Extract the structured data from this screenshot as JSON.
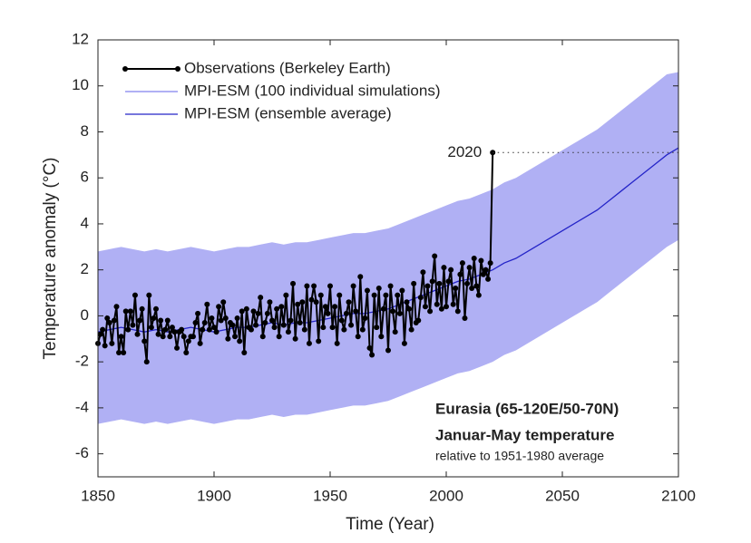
{
  "chart_data": {
    "type": "line",
    "xlabel": "Time (Year)",
    "ylabel": "Temperature anomaly (°C)",
    "xlim": [
      1850,
      2100
    ],
    "xticks": [
      1850,
      1900,
      1950,
      2000,
      2050,
      2100
    ],
    "ylim": [
      -7,
      12
    ],
    "yticks": [
      -6,
      -4,
      -2,
      0,
      2,
      4,
      6,
      8,
      10,
      12
    ],
    "grid": false,
    "legend": "upper left",
    "annotations": [
      "2020",
      "Eurasia (65-120E/50-70N)",
      "Januar-May temperature",
      "relative to 1951-1980 average"
    ],
    "band": {
      "name": "MPI-ESM (100 individual simulations)",
      "color": "#b0b0f4",
      "x": [
        1850,
        1855,
        1860,
        1865,
        1870,
        1875,
        1880,
        1885,
        1890,
        1895,
        1900,
        1905,
        1910,
        1915,
        1920,
        1925,
        1930,
        1935,
        1940,
        1945,
        1950,
        1955,
        1960,
        1965,
        1970,
        1975,
        1980,
        1985,
        1990,
        1995,
        2000,
        2005,
        2010,
        2015,
        2020,
        2025,
        2030,
        2035,
        2040,
        2045,
        2050,
        2055,
        2060,
        2065,
        2070,
        2075,
        2080,
        2085,
        2090,
        2095,
        2100
      ],
      "upper": [
        2.8,
        2.9,
        3.0,
        2.9,
        2.8,
        2.9,
        2.8,
        2.9,
        3.0,
        2.9,
        2.8,
        2.9,
        3.0,
        3.0,
        3.1,
        3.2,
        3.1,
        3.2,
        3.2,
        3.3,
        3.4,
        3.5,
        3.6,
        3.6,
        3.7,
        3.8,
        4.0,
        4.2,
        4.4,
        4.6,
        4.8,
        5.0,
        5.1,
        5.3,
        5.5,
        5.8,
        6.0,
        6.3,
        6.6,
        6.9,
        7.2,
        7.5,
        7.8,
        8.1,
        8.5,
        8.9,
        9.3,
        9.7,
        10.1,
        10.5,
        10.6
      ],
      "lower": [
        -4.7,
        -4.6,
        -4.5,
        -4.6,
        -4.7,
        -4.6,
        -4.7,
        -4.6,
        -4.5,
        -4.6,
        -4.7,
        -4.6,
        -4.5,
        -4.5,
        -4.4,
        -4.3,
        -4.4,
        -4.3,
        -4.3,
        -4.2,
        -4.1,
        -4.0,
        -3.9,
        -3.9,
        -3.8,
        -3.7,
        -3.5,
        -3.3,
        -3.1,
        -2.9,
        -2.7,
        -2.5,
        -2.4,
        -2.2,
        -2.0,
        -1.7,
        -1.5,
        -1.2,
        -0.9,
        -0.6,
        -0.3,
        0.0,
        0.3,
        0.6,
        1.0,
        1.4,
        1.8,
        2.2,
        2.6,
        3.0,
        3.3
      ]
    },
    "series": [
      {
        "name": "Observations (Berkeley Earth)",
        "color": "#000000",
        "markers": true,
        "x": [
          1850,
          1851,
          1852,
          1853,
          1854,
          1855,
          1856,
          1857,
          1858,
          1859,
          1860,
          1861,
          1862,
          1863,
          1864,
          1865,
          1866,
          1867,
          1868,
          1869,
          1870,
          1871,
          1872,
          1873,
          1874,
          1875,
          1876,
          1877,
          1878,
          1879,
          1880,
          1881,
          1882,
          1883,
          1884,
          1885,
          1886,
          1887,
          1888,
          1889,
          1890,
          1891,
          1892,
          1893,
          1894,
          1895,
          1896,
          1897,
          1898,
          1899,
          1900,
          1901,
          1902,
          1903,
          1904,
          1905,
          1906,
          1907,
          1908,
          1909,
          1910,
          1911,
          1912,
          1913,
          1914,
          1915,
          1916,
          1917,
          1918,
          1919,
          1920,
          1921,
          1922,
          1923,
          1924,
          1925,
          1926,
          1927,
          1928,
          1929,
          1930,
          1931,
          1932,
          1933,
          1934,
          1935,
          1936,
          1937,
          1938,
          1939,
          1940,
          1941,
          1942,
          1943,
          1944,
          1945,
          1946,
          1947,
          1948,
          1949,
          1950,
          1951,
          1952,
          1953,
          1954,
          1955,
          1956,
          1957,
          1958,
          1959,
          1960,
          1961,
          1962,
          1963,
          1964,
          1965,
          1966,
          1967,
          1968,
          1969,
          1970,
          1971,
          1972,
          1973,
          1974,
          1975,
          1976,
          1977,
          1978,
          1979,
          1980,
          1981,
          1982,
          1983,
          1984,
          1985,
          1986,
          1987,
          1988,
          1989,
          1990,
          1991,
          1992,
          1993,
          1994,
          1995,
          1996,
          1997,
          1998,
          1999,
          2000,
          2001,
          2002,
          2003,
          2004,
          2005,
          2006,
          2007,
          2008,
          2009,
          2010,
          2011,
          2012,
          2013,
          2014,
          2015,
          2016,
          2017,
          2018,
          2019,
          2020
        ],
        "values": [
          -1.2,
          -0.8,
          -0.6,
          -1.3,
          -0.1,
          -0.3,
          -1.2,
          -0.2,
          0.4,
          -1.6,
          -0.9,
          -1.6,
          0.2,
          -0.6,
          0.2,
          -0.4,
          0.9,
          -0.8,
          -0.2,
          0.3,
          -1.1,
          -2.0,
          0.9,
          -0.5,
          -0.1,
          0.3,
          -0.8,
          -0.2,
          -0.9,
          -0.6,
          -0.2,
          -0.9,
          -0.5,
          -0.7,
          -1.4,
          -0.7,
          -0.6,
          -0.9,
          -1.6,
          -1.1,
          -0.9,
          -0.9,
          -0.3,
          0.1,
          -1.2,
          -0.6,
          -0.3,
          0.5,
          -0.6,
          -0.1,
          -0.5,
          -0.7,
          0.4,
          -0.2,
          0.6,
          -0.1,
          -1.0,
          -0.3,
          -0.4,
          -0.9,
          -0.1,
          -1.1,
          0.2,
          -1.6,
          0.3,
          -0.5,
          -0.6,
          0.2,
          -0.4,
          0.1,
          0.8,
          -0.9,
          -0.3,
          0.1,
          0.6,
          -0.2,
          -0.5,
          0.3,
          -0.9,
          0.4,
          -0.4,
          0.9,
          -0.7,
          -0.2,
          1.4,
          -1.0,
          0.5,
          -0.3,
          0.6,
          -0.6,
          1.3,
          -1.2,
          0.7,
          1.3,
          0.6,
          -1.1,
          0.9,
          -0.5,
          0.4,
          0.1,
          1.3,
          -0.5,
          0.4,
          -1.2,
          0.9,
          -0.2,
          -0.6,
          0.1,
          0.6,
          -0.4,
          1.3,
          0.2,
          -0.9,
          1.7,
          -0.6,
          -0.1,
          1.1,
          -1.4,
          -1.7,
          0.9,
          -0.5,
          1.2,
          -0.9,
          0.3,
          0.9,
          -1.5,
          1.3,
          0.2,
          -0.7,
          0.9,
          0.1,
          1.1,
          -1.2,
          0.6,
          0.3,
          -0.6,
          1.4,
          -0.3,
          -0.2,
          0.8,
          1.9,
          0.4,
          1.3,
          0.2,
          1.5,
          2.6,
          0.5,
          1.4,
          0.3,
          2.1,
          0.4,
          1.5,
          2.0,
          0.5,
          1.2,
          0.2,
          1.8,
          2.3,
          -0.1,
          1.4,
          2.1,
          1.2,
          2.5,
          1.3,
          0.9,
          2.4,
          1.8,
          2.0,
          1.6,
          2.3,
          7.1
        ]
      },
      {
        "name": "MPI-ESM (ensemble average)",
        "color": "#2424c8",
        "markers": false,
        "x": [
          1850,
          1855,
          1860,
          1865,
          1870,
          1875,
          1880,
          1885,
          1890,
          1895,
          1900,
          1905,
          1910,
          1915,
          1920,
          1925,
          1930,
          1935,
          1940,
          1945,
          1950,
          1955,
          1960,
          1965,
          1970,
          1975,
          1980,
          1985,
          1990,
          1995,
          2000,
          2005,
          2010,
          2015,
          2020,
          2025,
          2030,
          2035,
          2040,
          2045,
          2050,
          2055,
          2060,
          2065,
          2070,
          2075,
          2080,
          2085,
          2090,
          2095,
          2100
        ],
        "values": [
          -0.7,
          -0.6,
          -0.5,
          -0.6,
          -0.7,
          -0.6,
          -0.7,
          -0.6,
          -0.5,
          -0.6,
          -0.7,
          -0.6,
          -0.5,
          -0.5,
          -0.4,
          -0.3,
          -0.4,
          -0.3,
          -0.3,
          -0.2,
          -0.1,
          0.0,
          0.1,
          0.1,
          0.2,
          0.3,
          0.5,
          0.7,
          0.9,
          1.1,
          1.3,
          1.5,
          1.6,
          1.8,
          2.0,
          2.3,
          2.5,
          2.8,
          3.1,
          3.4,
          3.7,
          4.0,
          4.3,
          4.6,
          5.0,
          5.4,
          5.8,
          6.2,
          6.6,
          7.0,
          7.3
        ]
      }
    ]
  }
}
